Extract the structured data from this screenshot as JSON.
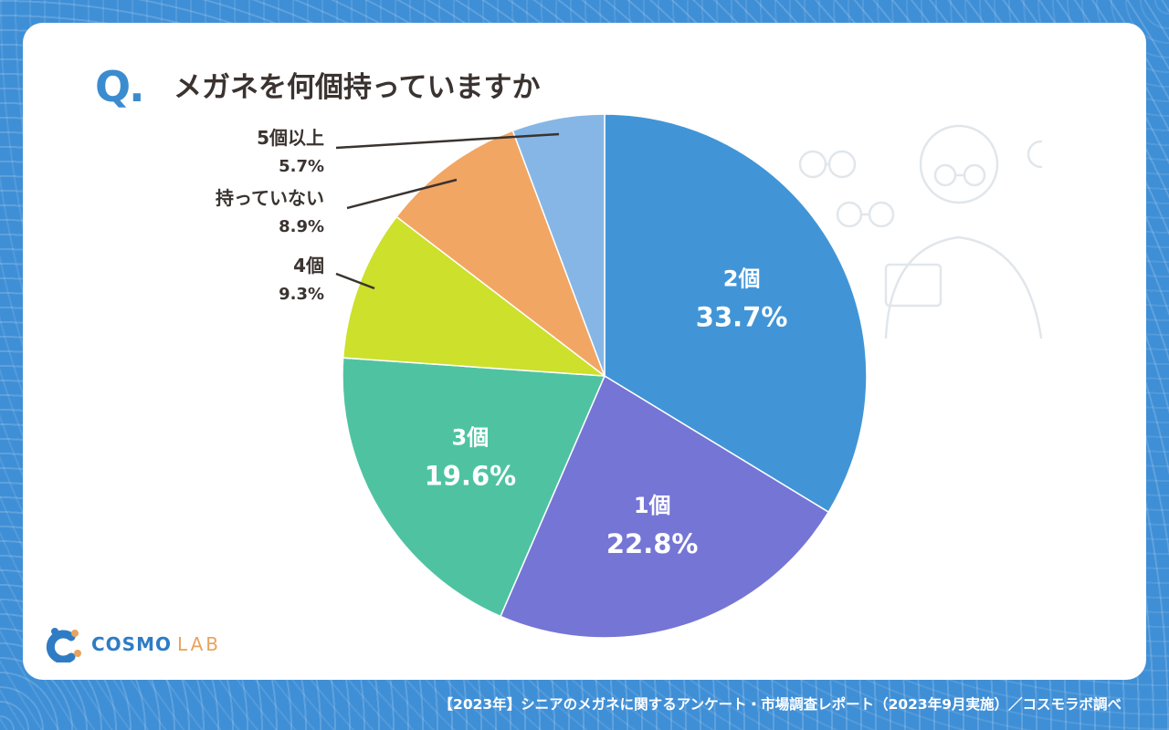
{
  "header": {
    "q_mark": "Q.",
    "title": "メガネを何個持っていますか"
  },
  "chart_data": {
    "type": "pie",
    "title": "メガネを何個持っていますか",
    "slices": [
      {
        "label": "2個",
        "value": 33.7,
        "display": "33.7%",
        "color": "#4195d6",
        "label_style": "inside"
      },
      {
        "label": "1個",
        "value": 22.8,
        "display": "22.8%",
        "color": "#7575d6",
        "label_style": "inside"
      },
      {
        "label": "3個",
        "value": 19.6,
        "display": "19.6%",
        "color": "#4fc3a1",
        "label_style": "inside"
      },
      {
        "label": "4個",
        "value": 9.3,
        "display": "9.3%",
        "color": "#cde02c",
        "label_style": "outside"
      },
      {
        "label": "持っていない",
        "value": 8.9,
        "display": "8.9%",
        "color": "#f2a663",
        "label_style": "outside"
      },
      {
        "label": "5個以上",
        "value": 5.7,
        "display": "5.7%",
        "color": "#86b6e6",
        "label_style": "outside"
      }
    ],
    "start": "12 o'clock",
    "direction": "clockwise"
  },
  "logo": {
    "name": "COSMO",
    "suffix": "LAB"
  },
  "footer": {
    "source": "【2023年】シニアのメガネに関するアンケート・市場調査レポート（2023年9月実施）／コスモラボ調べ"
  },
  "colors": {
    "background": "#3f8fd6",
    "accent": "#3b8ccf",
    "text": "#3a3330"
  }
}
